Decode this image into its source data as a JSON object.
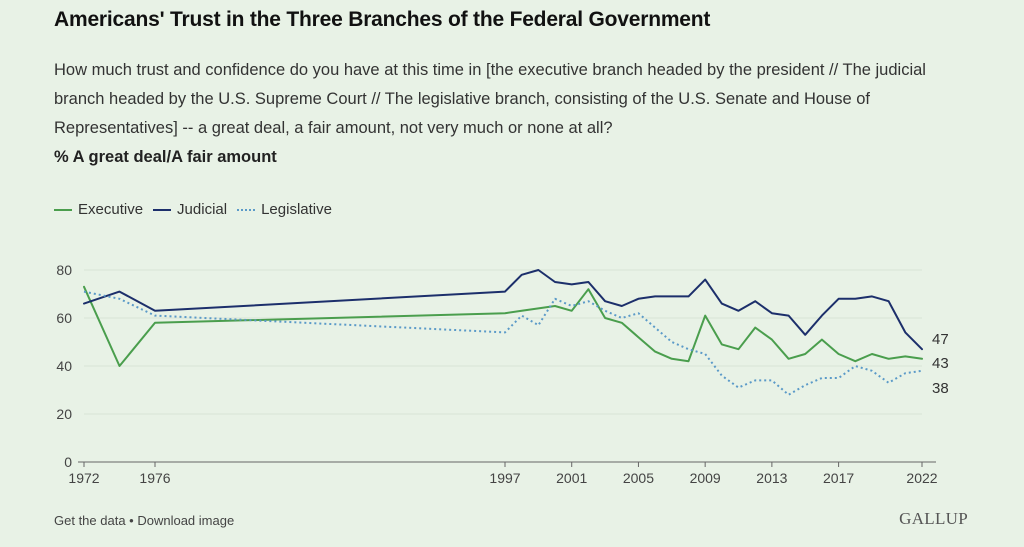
{
  "title": "Americans' Trust in the Three Branches of the Federal Government",
  "subtitle": "How much trust and confidence do you have at this time in [the executive branch headed by the president // The judicial branch headed by the U.S. Supreme Court // The legislative branch, consisting of the U.S. Senate and House of Representatives] -- a great deal, a fair amount, not very much or none at all?",
  "measure": "% A great deal/A fair amount",
  "legend": {
    "executive": "Executive",
    "judicial": "Judicial",
    "legislative": "Legislative"
  },
  "footer": {
    "get_data": "Get the data",
    "separator": " • ",
    "download": "Download image",
    "brand": "GALLUP"
  },
  "colors": {
    "background": "#e8f2e6",
    "executive": "#4a9e4d",
    "judicial": "#1c2f6b",
    "legislative": "#5b9ac8",
    "axis": "#666666",
    "grid": "#d9e4d6"
  },
  "chart_data": {
    "type": "line",
    "xlabel": "",
    "ylabel": "",
    "xlim": [
      1972,
      2022
    ],
    "ylim": [
      0,
      80
    ],
    "x_ticks": [
      1972,
      1976,
      1997,
      2001,
      2005,
      2009,
      2013,
      2017,
      2022
    ],
    "y_ticks": [
      0,
      20,
      40,
      60,
      80
    ],
    "legend_position": "top-left",
    "series": [
      {
        "name": "Executive",
        "color": "#4a9e4d",
        "style": "solid",
        "end_label": "43",
        "points": [
          [
            1972,
            73
          ],
          [
            1974,
            40
          ],
          [
            1976,
            58
          ],
          [
            1997,
            62
          ],
          [
            1998,
            63
          ],
          [
            1999,
            64
          ],
          [
            2000,
            65
          ],
          [
            2001,
            63
          ],
          [
            2002,
            72
          ],
          [
            2003,
            60
          ],
          [
            2004,
            58
          ],
          [
            2005,
            52
          ],
          [
            2006,
            46
          ],
          [
            2007,
            43
          ],
          [
            2008,
            42
          ],
          [
            2009,
            61
          ],
          [
            2010,
            49
          ],
          [
            2011,
            47
          ],
          [
            2012,
            56
          ],
          [
            2013,
            51
          ],
          [
            2014,
            43
          ],
          [
            2015,
            45
          ],
          [
            2016,
            51
          ],
          [
            2017,
            45
          ],
          [
            2018,
            42
          ],
          [
            2019,
            45
          ],
          [
            2020,
            43
          ],
          [
            2021,
            44
          ],
          [
            2022,
            43
          ]
        ]
      },
      {
        "name": "Judicial",
        "color": "#1c2f6b",
        "style": "solid",
        "end_label": "47",
        "points": [
          [
            1972,
            66
          ],
          [
            1974,
            71
          ],
          [
            1976,
            63
          ],
          [
            1997,
            71
          ],
          [
            1998,
            78
          ],
          [
            1999,
            80
          ],
          [
            2000,
            75
          ],
          [
            2001,
            74
          ],
          [
            2002,
            75
          ],
          [
            2003,
            67
          ],
          [
            2004,
            65
          ],
          [
            2005,
            68
          ],
          [
            2006,
            69
          ],
          [
            2007,
            69
          ],
          [
            2008,
            69
          ],
          [
            2009,
            76
          ],
          [
            2010,
            66
          ],
          [
            2011,
            63
          ],
          [
            2012,
            67
          ],
          [
            2013,
            62
          ],
          [
            2014,
            61
          ],
          [
            2015,
            53
          ],
          [
            2016,
            61
          ],
          [
            2017,
            68
          ],
          [
            2018,
            68
          ],
          [
            2019,
            69
          ],
          [
            2020,
            67
          ],
          [
            2021,
            54
          ],
          [
            2022,
            47
          ]
        ]
      },
      {
        "name": "Legislative",
        "color": "#5b9ac8",
        "style": "dotted",
        "end_label": "38",
        "points": [
          [
            1972,
            71
          ],
          [
            1974,
            68
          ],
          [
            1976,
            61
          ],
          [
            1997,
            54
          ],
          [
            1998,
            61
          ],
          [
            1999,
            57
          ],
          [
            2000,
            68
          ],
          [
            2001,
            65
          ],
          [
            2002,
            67
          ],
          [
            2003,
            63
          ],
          [
            2004,
            60
          ],
          [
            2005,
            62
          ],
          [
            2006,
            56
          ],
          [
            2007,
            50
          ],
          [
            2008,
            47
          ],
          [
            2009,
            45
          ],
          [
            2010,
            36
          ],
          [
            2011,
            31
          ],
          [
            2012,
            34
          ],
          [
            2013,
            34
          ],
          [
            2014,
            28
          ],
          [
            2015,
            32
          ],
          [
            2016,
            35
          ],
          [
            2017,
            35
          ],
          [
            2018,
            40
          ],
          [
            2019,
            38
          ],
          [
            2020,
            33
          ],
          [
            2021,
            37
          ],
          [
            2022,
            38
          ]
        ]
      }
    ]
  }
}
